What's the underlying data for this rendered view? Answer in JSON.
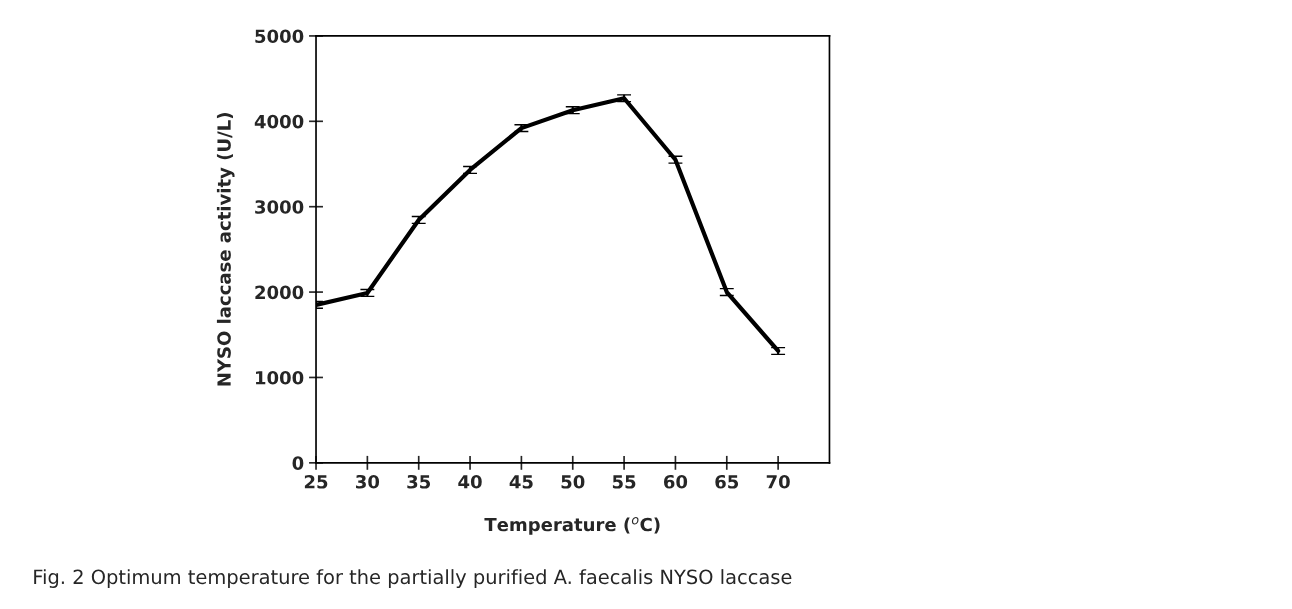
{
  "chart_data": {
    "type": "line",
    "xlabel": "Temperature ($^{o}$C)",
    "ylabel": "NYSO laccase activity (U/L)",
    "x": [
      25,
      30,
      35,
      40,
      45,
      50,
      55,
      60,
      65,
      70
    ],
    "series": [
      {
        "color": "#000000",
        "values": [
          1850,
          1990,
          2845,
          3430,
          3920,
          4130,
          4270,
          3550,
          2000,
          1310
        ],
        "errors": [
          40,
          40,
          40,
          40,
          40,
          40,
          40,
          40,
          40,
          40
        ]
      }
    ],
    "xlim": [
      25,
      75
    ],
    "xticks": [
      25,
      30,
      35,
      40,
      45,
      50,
      55,
      60,
      65,
      70
    ],
    "ylim": [
      0,
      5000
    ],
    "yticks": [
      0,
      1000,
      2000,
      3000,
      4000,
      5000
    ],
    "grid": false,
    "legend": false,
    "marker": "none",
    "line_style": "solid",
    "annotations": [
      "Fig. 2 Optimum temperature for the partially purified A. faecalis NYSO laccase"
    ]
  }
}
